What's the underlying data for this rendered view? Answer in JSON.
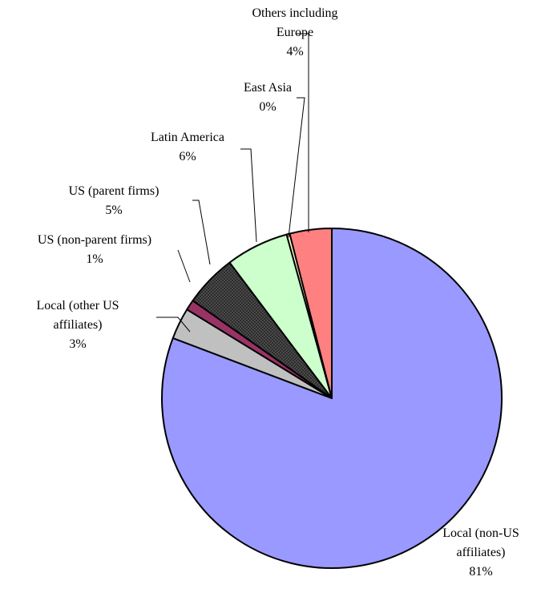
{
  "chart_data": {
    "type": "pie",
    "title": "",
    "start_angle_deg": 90,
    "direction": "clockwise",
    "slices": [
      {
        "label_lines": [
          "Local (non-US",
          "affiliates)"
        ],
        "value": 81,
        "value_label": "81%",
        "color": "#9999ff"
      },
      {
        "label_lines": [
          "Local (other US",
          "affiliates)"
        ],
        "value": 3,
        "value_label": "3%",
        "color": "#c0c0c0"
      },
      {
        "label_lines": [
          "US (non-parent firms)"
        ],
        "value": 1,
        "value_label": "1%",
        "color": "#993366"
      },
      {
        "label_lines": [
          "US (parent firms)"
        ],
        "value": 5,
        "value_label": "5%",
        "color": "#555555",
        "pattern": "crosshatch"
      },
      {
        "label_lines": [
          "Latin America"
        ],
        "value": 6,
        "value_label": "6%",
        "color": "#ccffcc"
      },
      {
        "label_lines": [
          "East Asia"
        ],
        "value": 0.3,
        "value_label": "0%",
        "color": "#ffffcc"
      },
      {
        "label_lines": [
          "Others including",
          "Europe"
        ],
        "value": 4,
        "value_label": "4%",
        "color": "#ff8080"
      }
    ]
  }
}
